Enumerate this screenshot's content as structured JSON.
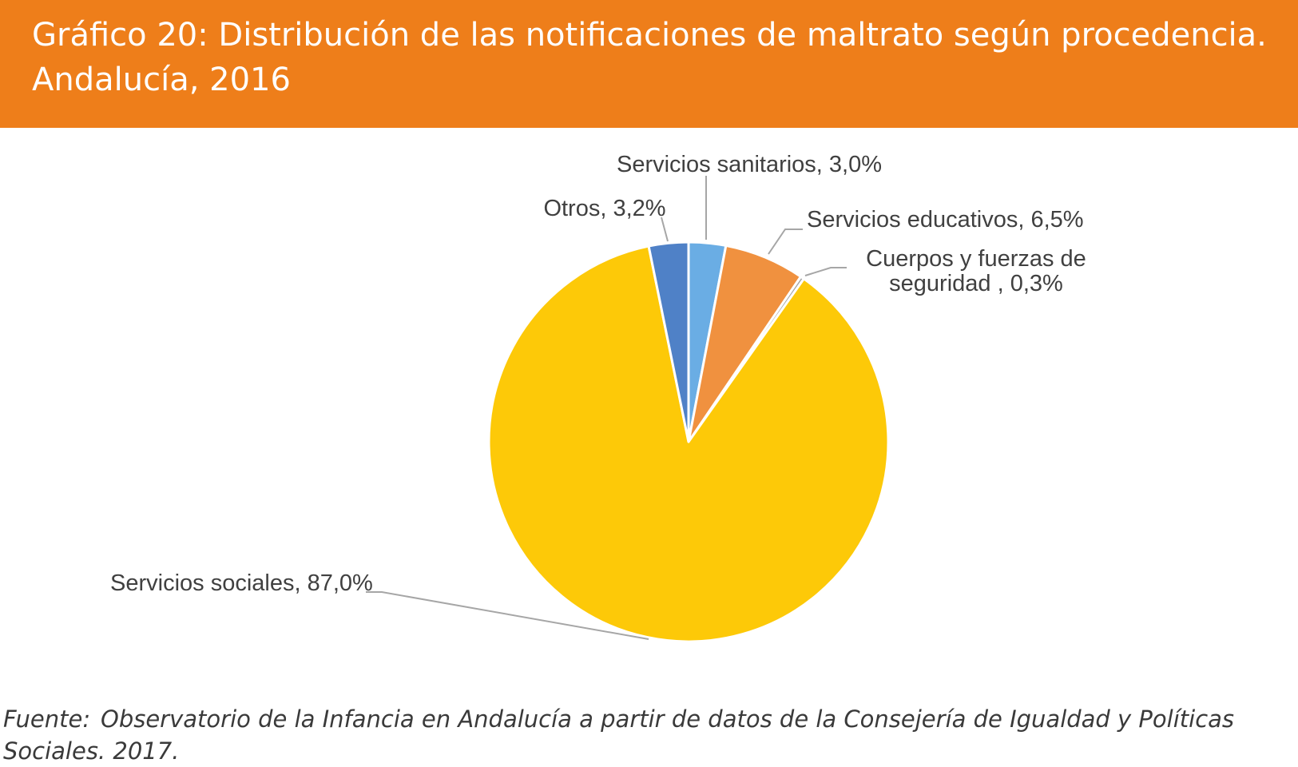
{
  "title": "Gráfico 20: Distribución de las notificaciones de maltrato según procedencia. Andalucía, 2016",
  "footer": {
    "label": "Fuente:",
    "text": "Observatorio de la Infancia en Andalucía a partir de datos de la Consejería de Igualdad y Políticas Sociales. 2017."
  },
  "colors": {
    "header_bg": "#EE7E1A",
    "leader_line": "#A6A6A6"
  },
  "chart_data": {
    "type": "pie",
    "title": "Gráfico 20: Distribución de las notificaciones de maltrato según procedencia. Andalucía, 2016",
    "slices": [
      {
        "name": "Servicios sanitarios",
        "value": 3.0,
        "label": "Servicios sanitarios, 3,0%",
        "color": "#6AADE4"
      },
      {
        "name": "Servicios educativos",
        "value": 6.5,
        "label": "Servicios educativos, 6,5%",
        "color": "#F0913F"
      },
      {
        "name": "Cuerpos y fuerzas de seguridad",
        "value": 0.3,
        "label": "Cuerpos y fuerzas de seguridad , 0,3%",
        "label_lines": [
          "Cuerpos y fuerzas de",
          "seguridad , 0,3%"
        ],
        "color": "#A5A5A5"
      },
      {
        "name": "Servicios sociales",
        "value": 87.0,
        "label": "Servicios sociales, 87,0%",
        "color": "#FDC908"
      },
      {
        "name": "Otros",
        "value": 3.2,
        "label": "Otros, 3,2%",
        "color": "#4F81C7"
      }
    ]
  }
}
